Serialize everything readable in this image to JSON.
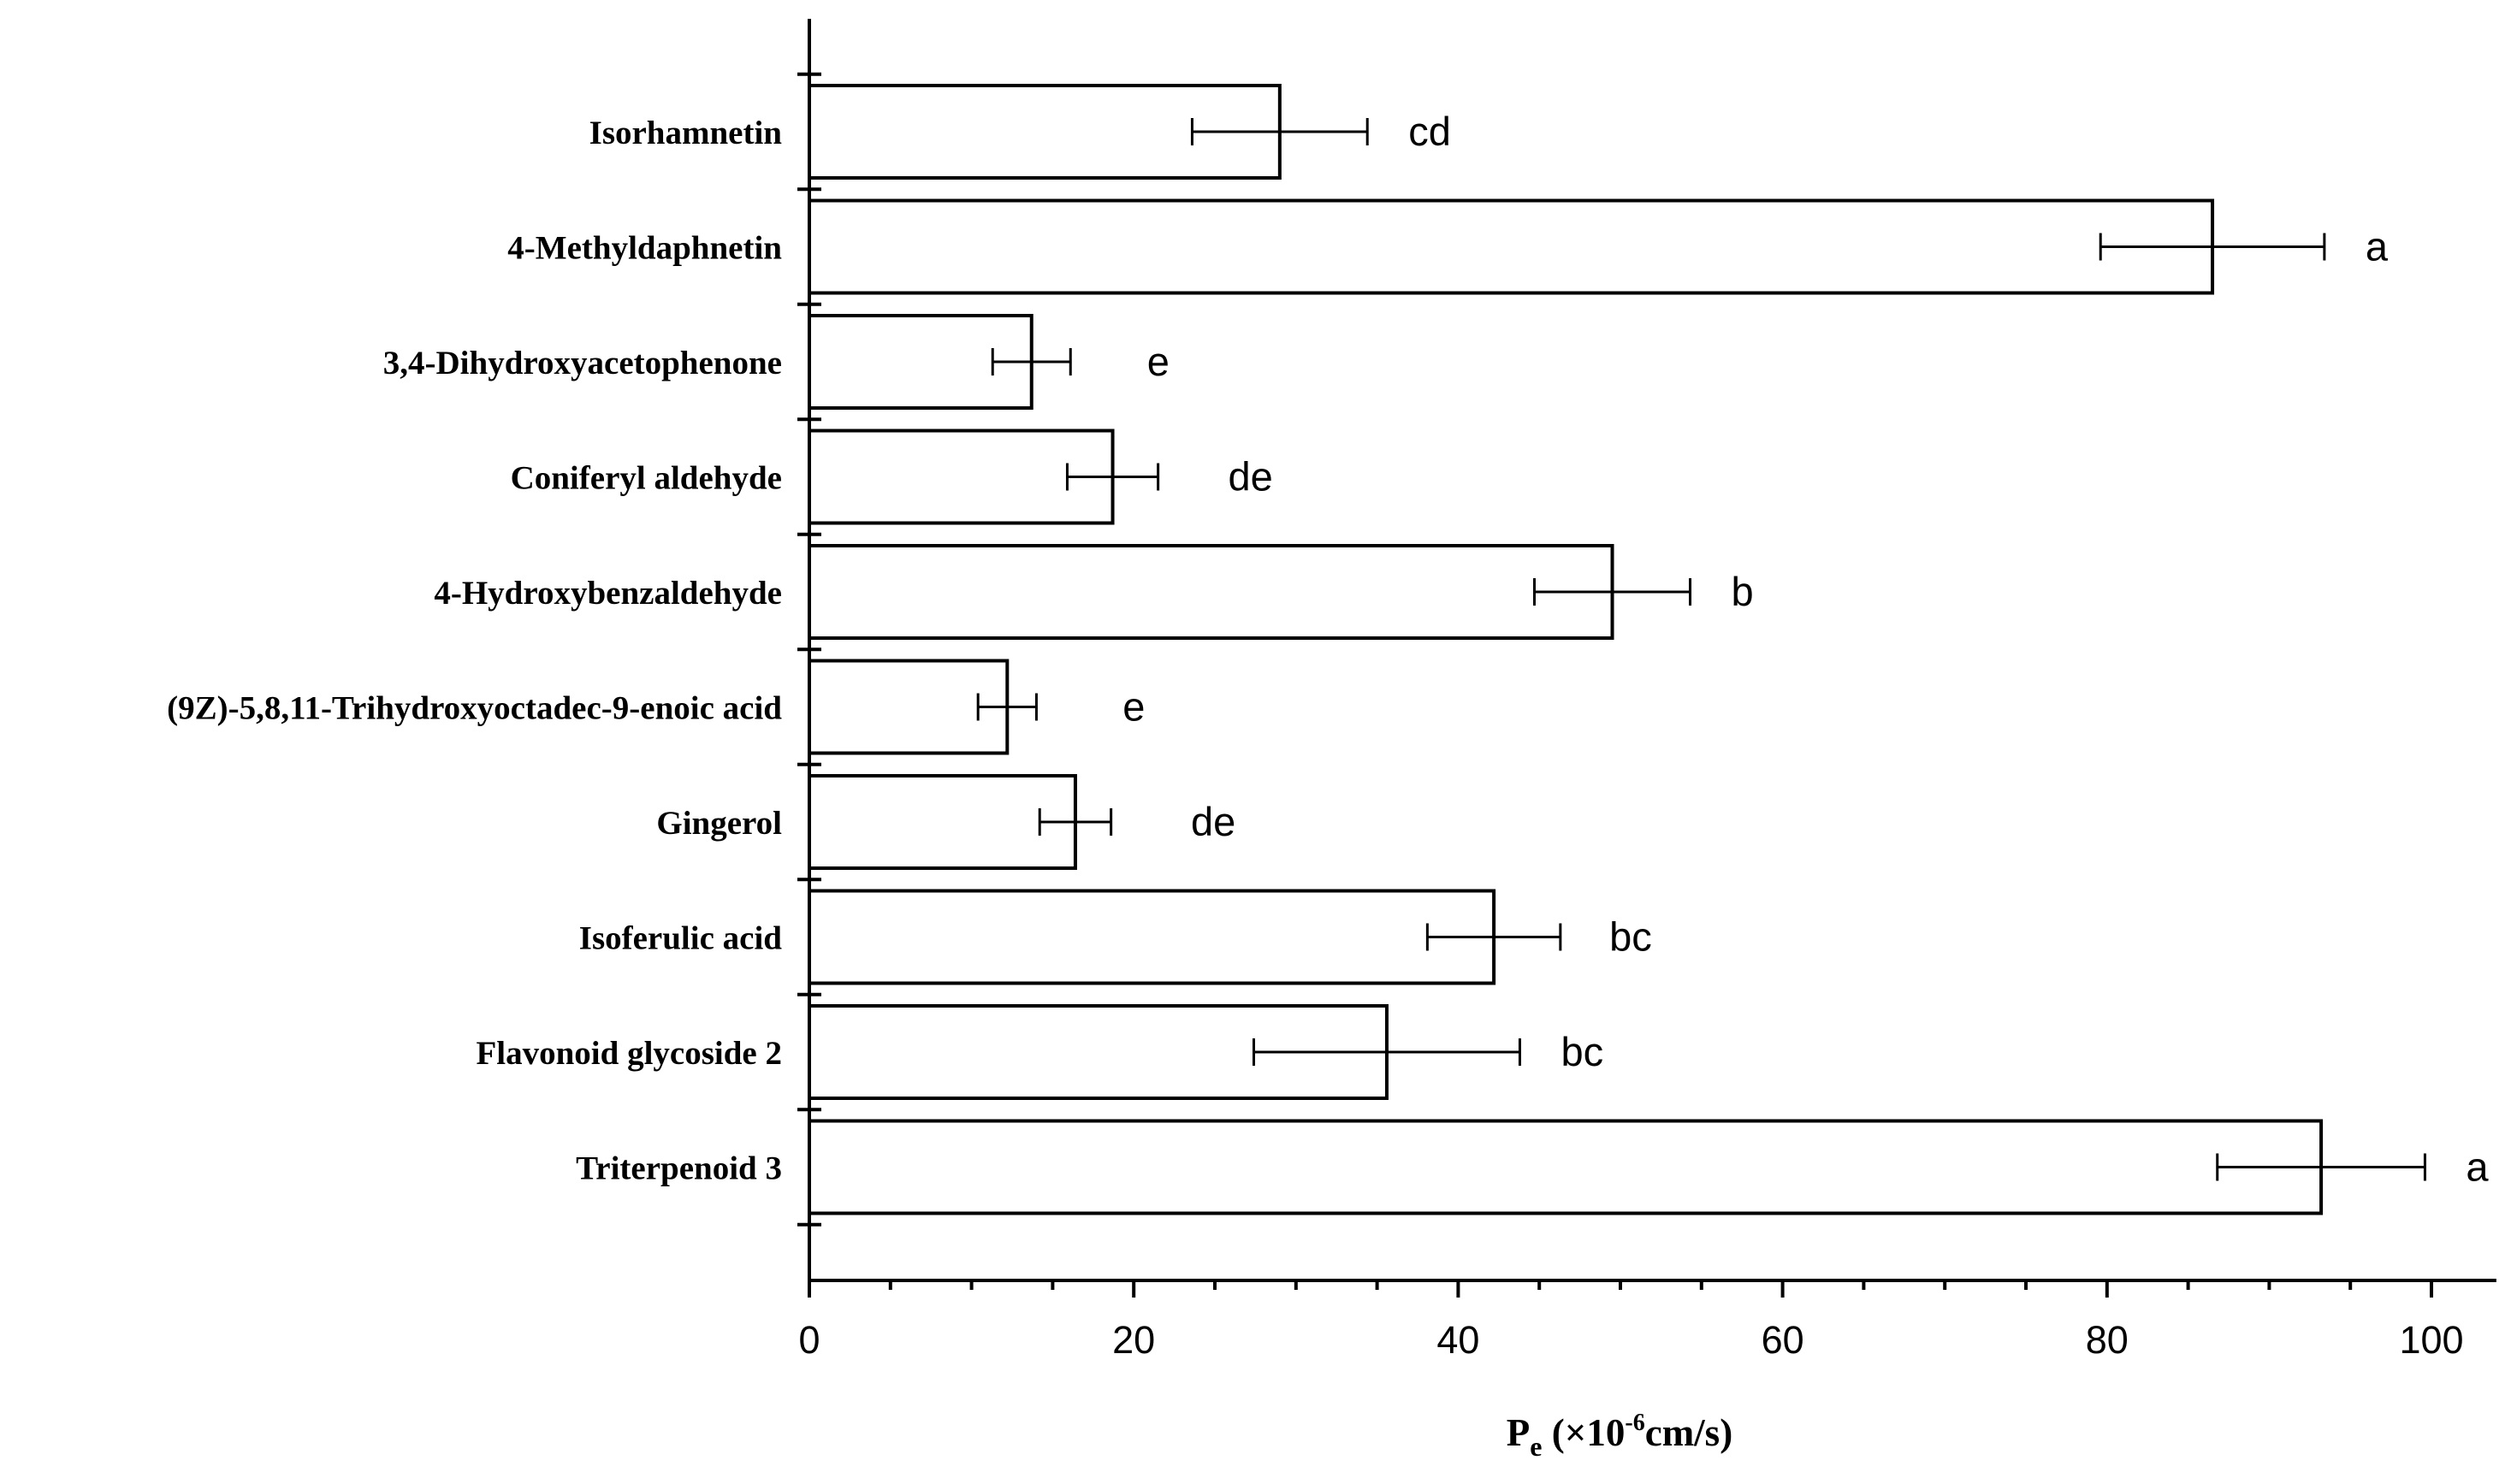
{
  "chart_data": {
    "type": "bar",
    "orientation": "horizontal",
    "title": "",
    "xlabel": {
      "symbol": "P",
      "subscript": "e",
      "prefix": " (×10",
      "exponent": "-6",
      "unit": "cm/s)"
    },
    "ylabel": "",
    "xlim": [
      0,
      104
    ],
    "xticks": [
      "0",
      "20",
      "40",
      "60",
      "80",
      "100"
    ],
    "categories": [
      "Isorhamnetin",
      "4-Methyldaphnetin",
      "3,4-Dihydroxyacetophenone",
      "Coniferyl aldehyde",
      "4-Hydroxybenzaldehyde",
      "(9Z)-5,8,11-Trihydroxyoctadec-9-enoic acid",
      "Gingerol",
      "Isoferulic acid",
      "Flavonoid glycoside 2",
      "Triterpenoid 3"
    ],
    "values": [
      29,
      86.5,
      13.7,
      18.7,
      49.5,
      12.2,
      16.4,
      42.2,
      35.6,
      93.2
    ],
    "errors": [
      5.4,
      6.9,
      2.4,
      2.8,
      4.8,
      1.8,
      2.2,
      4.1,
      8.2,
      6.4
    ],
    "significance": [
      "cd",
      "a",
      "e",
      "de",
      "b",
      "e",
      "de",
      "bc",
      "bc",
      "a"
    ],
    "grid": false,
    "legend": "none",
    "colors": {
      "bar_fill": "#ffffff",
      "stroke": "#000000"
    }
  }
}
